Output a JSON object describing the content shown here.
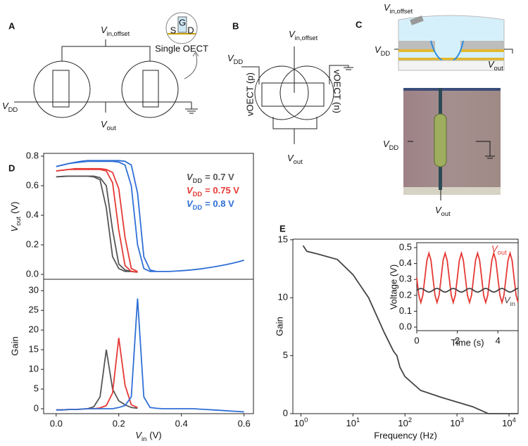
{
  "panel_labels": [
    "A",
    "B",
    "C",
    "D",
    "E"
  ],
  "diagrams": {
    "a": {
      "input": {
        "symbol": "V",
        "subscript": "in,offset"
      },
      "supply": {
        "symbol": "V",
        "subscript": "DD"
      },
      "output": {
        "symbol": "V",
        "subscript": "out"
      },
      "inset_caption": "Single OECT",
      "inset_source": "S",
      "inset_drain": "D",
      "inset_gate": "G"
    },
    "b": {
      "input": {
        "symbol": "V",
        "subscript": "in,offset"
      },
      "supply": {
        "symbol": "V",
        "subscript": "DD"
      },
      "output": {
        "symbol": "V",
        "subscript": "out"
      },
      "device_p": "vOECT (p)",
      "device_n": "vOECT (n)"
    },
    "c": {
      "input": {
        "symbol": "V",
        "subscript": "in,offset"
      },
      "supply": {
        "symbol": "V",
        "subscript": "DD"
      },
      "output": {
        "symbol": "V",
        "subscript": "out"
      },
      "image_supply": {
        "symbol": "V",
        "subscript": "DD"
      },
      "image_output": {
        "symbol": "V",
        "subscript": "out"
      }
    }
  },
  "chart_data": [
    {
      "type": "line",
      "ylabel": {
        "symbol": "V",
        "subscript": "out",
        "unit": "(V)"
      },
      "x": [
        0,
        0.02,
        0.04,
        0.06,
        0.08,
        0.1,
        0.12,
        0.14,
        0.16,
        0.18,
        0.2,
        0.22,
        0.24,
        0.26,
        0.28,
        0.3,
        0.32,
        0.34,
        0.36,
        0.38,
        0.4,
        0.42,
        0.44,
        0.46,
        0.48,
        0.5,
        0.52,
        0.54,
        0.56,
        0.58,
        0.6
      ],
      "xlim": [
        -0.04,
        0.63
      ],
      "ylim": [
        -0.033,
        0.819
      ],
      "yticks": [
        {
          "value": 0,
          "label": "0.0"
        },
        0.2,
        0.4,
        0.6,
        0.8
      ],
      "series": [
        {
          "name": {
            "symbol": "V",
            "subscript": "DD",
            "text": "= 0.7 V"
          },
          "color": "#555555",
          "values": [
            0.66,
            0.663,
            0.665,
            0.665,
            0.665,
            0.665,
            0.665,
            0.655,
            0.6,
            0.3,
            0.07,
            0.03,
            0.02,
            0.015,
            null,
            null,
            null,
            null,
            null,
            null,
            null,
            null,
            null,
            null,
            null,
            null,
            null,
            null,
            null,
            null,
            null
          ],
          "reverse_values": [
            0.66,
            0.663,
            0.665,
            0.665,
            0.665,
            0.665,
            0.66,
            0.64,
            0.45,
            0.12,
            0.04,
            0.02,
            0.02,
            0.015,
            null,
            null,
            null,
            null,
            null,
            null,
            null,
            null,
            null,
            null,
            null,
            null,
            null,
            null,
            null,
            null,
            null
          ]
        },
        {
          "name": {
            "symbol": "V",
            "subscript": "DD",
            "text": "= 0.75 V"
          },
          "color": "#e53935",
          "values": [
            0.7,
            0.705,
            0.71,
            0.715,
            0.715,
            0.715,
            0.715,
            0.715,
            0.71,
            0.69,
            0.58,
            0.25,
            0.04,
            0.02,
            null,
            null,
            null,
            null,
            null,
            null,
            null,
            null,
            null,
            null,
            null,
            null,
            null,
            null,
            null,
            null,
            null
          ],
          "reverse_values": [
            0.7,
            0.705,
            0.71,
            0.71,
            0.71,
            0.71,
            0.71,
            0.71,
            0.7,
            0.62,
            0.3,
            0.06,
            0.02,
            0.015,
            null,
            null,
            null,
            null,
            null,
            null,
            null,
            null,
            null,
            null,
            null,
            null,
            null,
            null,
            null,
            null,
            null
          ]
        },
        {
          "name": {
            "symbol": "V",
            "subscript": "DD",
            "text": "= 0.8 V"
          },
          "color": "#2f6fd6",
          "values": [
            0.73,
            0.74,
            0.75,
            0.758,
            0.765,
            0.77,
            0.77,
            0.77,
            0.77,
            0.77,
            0.77,
            0.765,
            0.74,
            0.55,
            0.12,
            0.03,
            0.02,
            0.02,
            0.02,
            0.022,
            0.025,
            0.028,
            0.032,
            0.037,
            0.043,
            0.05,
            0.057,
            0.065,
            0.074,
            0.084,
            0.096
          ],
          "reverse_values": [
            0.73,
            0.74,
            0.75,
            0.755,
            0.76,
            0.765,
            0.765,
            0.765,
            0.765,
            0.765,
            0.76,
            0.74,
            0.6,
            0.2,
            0.04,
            0.02,
            0.02,
            null,
            null,
            null,
            null,
            null,
            null,
            null,
            null,
            null,
            null,
            null,
            null,
            null,
            null
          ]
        }
      ]
    },
    {
      "type": "line",
      "ylabel": "Gain",
      "xlabel": {
        "symbol": "V",
        "subscript": "in",
        "unit": "(V)"
      },
      "x": [
        0,
        0.02,
        0.04,
        0.06,
        0.08,
        0.1,
        0.12,
        0.14,
        0.16,
        0.18,
        0.2,
        0.22,
        0.24,
        0.26,
        0.28,
        0.3,
        0.32,
        0.34,
        0.36,
        0.38,
        0.4,
        0.42,
        0.44,
        0.46,
        0.48,
        0.5,
        0.52,
        0.54,
        0.56,
        0.58,
        0.6
      ],
      "xlim": [
        -0.04,
        0.63
      ],
      "ylim": [
        -1.25,
        32.9
      ],
      "xticks": [
        {
          "value": 0,
          "label": "0.0"
        },
        0.2,
        0.4,
        0.6
      ],
      "yticks": [
        0,
        5,
        10,
        15,
        20,
        25,
        30
      ],
      "series": [
        {
          "color": "#555555",
          "values": [
            -0.3,
            -0.3,
            -0.2,
            -0.2,
            -0.1,
            0,
            0.5,
            3,
            15,
            5,
            2,
            1,
            0.3,
            0.1,
            null,
            null,
            null,
            null,
            null,
            null,
            null,
            null,
            null,
            null,
            null,
            null,
            null,
            null,
            null,
            null,
            null
          ]
        },
        {
          "color": "#e53935",
          "values": [
            -0.3,
            -0.3,
            -0.2,
            -0.2,
            -0.1,
            0,
            0,
            0.2,
            0.8,
            4,
            18,
            6,
            1,
            0.3,
            null,
            null,
            null,
            null,
            null,
            null,
            null,
            null,
            null,
            null,
            null,
            null,
            null,
            null,
            null,
            null,
            null
          ]
        },
        {
          "color": "#2f6fd6",
          "values": [
            -0.3,
            -0.3,
            -0.2,
            -0.2,
            -0.1,
            0,
            0,
            0,
            0,
            0,
            0.3,
            0.8,
            3,
            28,
            3,
            0.3,
            0.1,
            0,
            0,
            0,
            0,
            0,
            0,
            -0.1,
            -0.2,
            -0.3,
            -0.4,
            -0.5,
            -0.6,
            -0.7,
            -0.8
          ]
        }
      ]
    },
    {
      "type": "line",
      "log_x": true,
      "ylabel": "Gain",
      "xlabel": "Frequency (Hz)",
      "x": [
        1.1,
        1.3,
        2,
        5,
        10,
        20,
        40,
        60,
        70,
        80,
        100,
        200,
        500,
        1000,
        2000,
        4000,
        15000
      ],
      "xlim": [
        0.7,
        15000
      ],
      "ylim": [
        0,
        15.05
      ],
      "xticks": [
        {
          "value": 1,
          "label": "10",
          "exponent": "0"
        },
        {
          "value": 10,
          "label": "10",
          "exponent": "1"
        },
        {
          "value": 100,
          "label": "10",
          "exponent": "2"
        },
        {
          "value": 1000,
          "label": "10",
          "exponent": "3"
        },
        {
          "value": 10000,
          "label": "10",
          "exponent": "4"
        }
      ],
      "yticks": [
        0,
        5,
        10,
        15
      ],
      "series": [
        {
          "color": "#444444",
          "values": [
            14.5,
            14,
            13.8,
            13.3,
            12,
            10,
            7,
            5.4,
            5,
            4,
            3.2,
            2,
            1.4,
            1,
            0.6,
            0,
            0
          ]
        }
      ]
    },
    {
      "type": "line",
      "ylabel": "Voltage (V)",
      "xlabel": "Time (s)",
      "x": [
        0,
        0.1,
        0.2,
        0.3,
        0.4,
        0.5,
        0.6,
        0.7,
        0.8,
        0.9,
        1,
        1.1,
        1.2,
        1.3,
        1.4,
        1.5,
        1.6,
        1.7,
        1.8,
        1.9,
        2,
        2.1,
        2.2,
        2.3,
        2.4,
        2.5,
        2.6,
        2.7,
        2.8,
        2.9,
        3,
        3.1,
        3.2,
        3.3,
        3.4,
        3.5,
        3.6,
        3.7,
        3.8,
        3.9,
        4,
        4.1,
        4.2,
        4.3,
        4.4,
        4.5,
        4.6,
        4.7,
        4.8,
        4.9,
        5
      ],
      "xlim": [
        0,
        5
      ],
      "ylim": [
        -0.022,
        0.531
      ],
      "xticks": [
        0,
        2,
        4
      ],
      "yticks": [
        {
          "value": 0,
          "label": "0.0"
        },
        0.1,
        0.2,
        0.3,
        0.4,
        0.5
      ],
      "series": [
        {
          "name": {
            "symbol": "V",
            "subscript": "out"
          },
          "color": "#e53935",
          "values": [
            0.31,
            0.2,
            0.155,
            0.2,
            0.31,
            0.42,
            0.465,
            0.42,
            0.31,
            0.2,
            0.155,
            0.2,
            0.31,
            0.42,
            0.465,
            0.42,
            0.31,
            0.2,
            0.155,
            0.2,
            0.31,
            0.42,
            0.465,
            0.42,
            0.31,
            0.2,
            0.155,
            0.2,
            0.31,
            0.42,
            0.465,
            0.42,
            0.31,
            0.2,
            0.155,
            0.2,
            0.31,
            0.42,
            0.465,
            0.42,
            0.31,
            0.2,
            0.155,
            0.2,
            0.31,
            0.42,
            0.465,
            0.42,
            0.31,
            0.2,
            0.155
          ]
        },
        {
          "name": {
            "symbol": "V",
            "subscript": "in"
          },
          "color": "#444444",
          "values": [
            0.232,
            0.24,
            0.244,
            0.24,
            0.232,
            0.224,
            0.22,
            0.224,
            0.232,
            0.24,
            0.244,
            0.24,
            0.232,
            0.224,
            0.22,
            0.224,
            0.232,
            0.24,
            0.244,
            0.24,
            0.232,
            0.224,
            0.22,
            0.224,
            0.232,
            0.24,
            0.244,
            0.24,
            0.232,
            0.224,
            0.22,
            0.224,
            0.232,
            0.24,
            0.244,
            0.24,
            0.232,
            0.224,
            0.22,
            0.224,
            0.232,
            0.24,
            0.244,
            0.24,
            0.232,
            0.224,
            0.22,
            0.224,
            0.232,
            0.24,
            0.244
          ]
        }
      ]
    }
  ]
}
